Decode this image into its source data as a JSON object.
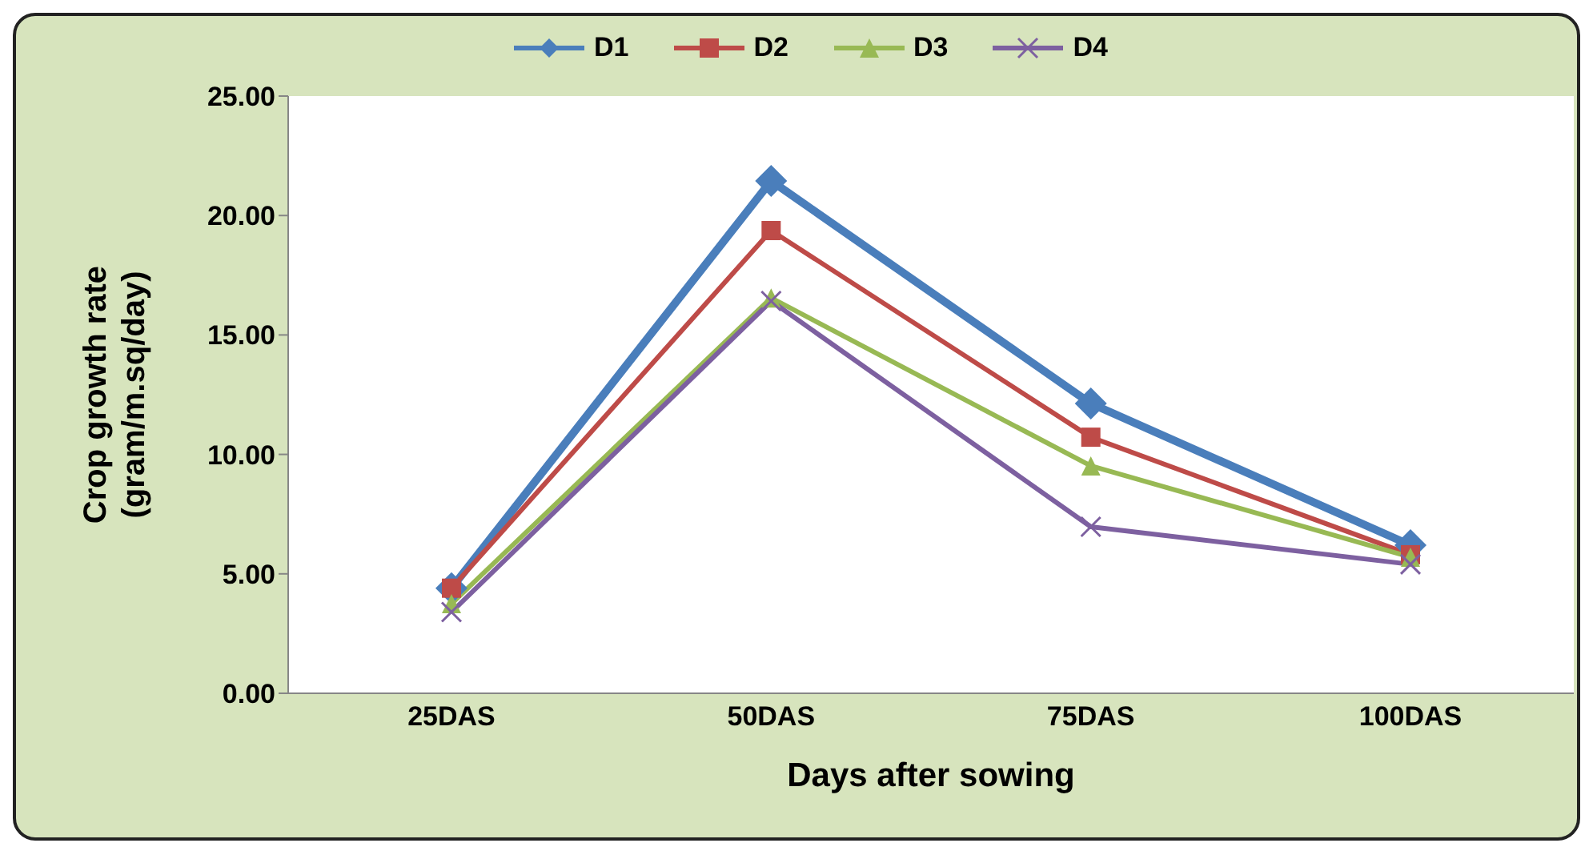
{
  "chart_data": {
    "type": "line",
    "xlabel": "Days after sowing",
    "ylabel": "Crop growth rate (gram/m.sq/day)",
    "categories": [
      "25DAS",
      "50DAS",
      "75DAS",
      "100DAS"
    ],
    "series": [
      {
        "name": "D1",
        "color": "#4a7ebb",
        "marker": "diamond",
        "values": [
          4.4,
          21.45,
          12.13,
          6.2
        ]
      },
      {
        "name": "D2",
        "color": "#be4b48",
        "marker": "square",
        "values": [
          4.4,
          19.37,
          10.72,
          5.8
        ]
      },
      {
        "name": "D3",
        "color": "#98b954",
        "marker": "triangle",
        "values": [
          3.75,
          16.55,
          9.52,
          5.7
        ]
      },
      {
        "name": "D4",
        "color": "#7d60a0",
        "marker": "cross",
        "values": [
          3.4,
          16.42,
          6.97,
          5.4
        ]
      }
    ],
    "ylim": [
      0,
      25
    ],
    "yticks": [
      {
        "value": 0,
        "label": "0.00"
      },
      {
        "value": 5,
        "label": "5.00"
      },
      {
        "value": 10,
        "label": "10.00"
      },
      {
        "value": 15,
        "label": "15.00"
      },
      {
        "value": 20,
        "label": "20.00"
      },
      {
        "value": 25,
        "label": "25.00"
      }
    ],
    "grid": false,
    "legend": "top",
    "line_style": "solid"
  }
}
